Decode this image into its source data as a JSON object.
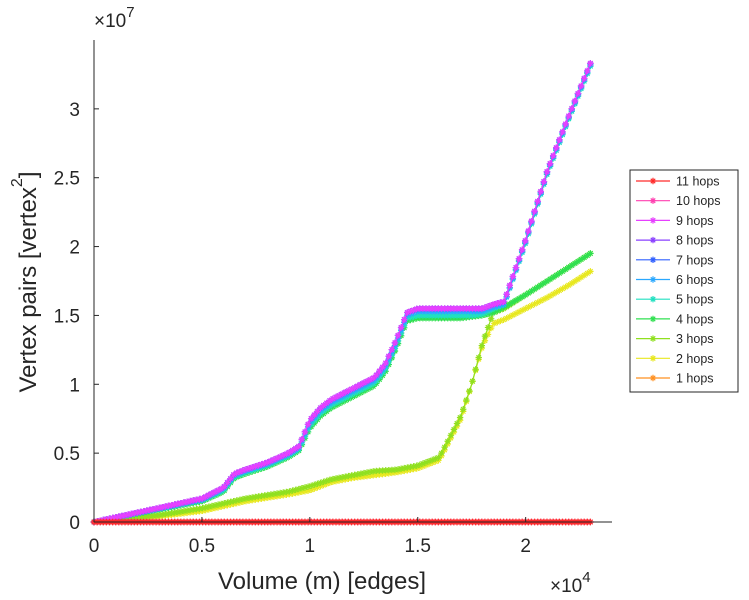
{
  "chart_data": {
    "type": "line",
    "title": "",
    "xlabel": "Volume (m) [edges]",
    "ylabel": "Vertex pairs [vertex",
    "ylabel_superscript": "2",
    "ylabel_close": "]",
    "x_exponent_label": "×10",
    "x_exponent": "4",
    "y_exponent_label": "×10",
    "y_exponent": "7",
    "xlim": [
      0,
      2.4
    ],
    "ylim": [
      0,
      3.5
    ],
    "x_ticks": [
      0,
      0.5,
      1,
      1.5,
      2
    ],
    "x_tick_labels": [
      "0",
      "0.5",
      "1",
      "1.5",
      "2"
    ],
    "y_ticks": [
      0,
      0.5,
      1,
      1.5,
      2,
      2.5,
      3
    ],
    "y_tick_labels": [
      "0",
      "0.5",
      "1",
      "1.5",
      "2",
      "2.5",
      "3"
    ],
    "units_note": "x values in units of 1e4 edges, y values in units of 1e7 vertex pairs",
    "legend_position": "right",
    "series": [
      {
        "name": "11 hops",
        "color": "#ff2a2a",
        "x": [
          0,
          2.3
        ],
        "y": [
          0,
          0
        ]
      },
      {
        "name": "10 hops",
        "color": "#ff40b0",
        "x": [
          0,
          2.3
        ],
        "y": [
          0,
          0
        ]
      },
      {
        "name": "9 hops",
        "color": "#e640ff",
        "x": [
          0,
          0.5,
          0.6,
          0.65,
          0.7,
          0.8,
          0.9,
          0.95,
          1.0,
          1.05,
          1.1,
          1.2,
          1.3,
          1.35,
          1.4,
          1.45,
          1.5,
          1.6,
          1.7,
          1.75,
          1.8,
          1.85,
          1.9,
          2.0,
          2.1,
          2.2,
          2.3
        ],
        "y": [
          0,
          0.17,
          0.25,
          0.35,
          0.38,
          0.43,
          0.5,
          0.55,
          0.74,
          0.83,
          0.89,
          0.97,
          1.05,
          1.15,
          1.32,
          1.52,
          1.55,
          1.55,
          1.55,
          1.55,
          1.55,
          1.58,
          1.6,
          2.05,
          2.55,
          2.95,
          3.33
        ]
      },
      {
        "name": "8 hops",
        "color": "#8a40ff",
        "x": [
          0,
          0.5,
          0.6,
          0.65,
          0.7,
          0.8,
          0.9,
          0.95,
          1.0,
          1.05,
          1.1,
          1.2,
          1.3,
          1.35,
          1.4,
          1.45,
          1.5,
          1.6,
          1.7,
          1.75,
          1.8,
          1.85,
          1.9,
          2.0,
          2.1,
          2.2,
          2.3
        ],
        "y": [
          0,
          0.17,
          0.25,
          0.35,
          0.38,
          0.43,
          0.5,
          0.55,
          0.74,
          0.83,
          0.89,
          0.97,
          1.05,
          1.15,
          1.32,
          1.52,
          1.55,
          1.55,
          1.55,
          1.55,
          1.55,
          1.58,
          1.6,
          2.05,
          2.55,
          2.95,
          3.33
        ]
      },
      {
        "name": "7 hops",
        "color": "#3060ff",
        "x": [
          0,
          0.5,
          0.6,
          0.65,
          0.7,
          0.8,
          0.9,
          0.95,
          1.0,
          1.05,
          1.1,
          1.2,
          1.3,
          1.35,
          1.4,
          1.45,
          1.5,
          1.6,
          1.7,
          1.75,
          1.8,
          1.85,
          1.9,
          2.0,
          2.1,
          2.2,
          2.3
        ],
        "y": [
          0,
          0.17,
          0.25,
          0.35,
          0.38,
          0.43,
          0.5,
          0.55,
          0.74,
          0.83,
          0.89,
          0.97,
          1.05,
          1.15,
          1.32,
          1.52,
          1.55,
          1.55,
          1.55,
          1.55,
          1.55,
          1.58,
          1.6,
          2.05,
          2.55,
          2.95,
          3.33
        ]
      },
      {
        "name": "6 hops",
        "color": "#2aa8ff",
        "x": [
          0,
          0.5,
          0.6,
          0.65,
          0.7,
          0.8,
          0.9,
          0.95,
          1.0,
          1.05,
          1.1,
          1.2,
          1.3,
          1.35,
          1.4,
          1.45,
          1.5,
          1.6,
          1.7,
          1.75,
          1.8,
          1.85,
          1.9,
          2.0,
          2.1,
          2.2,
          2.3
        ],
        "y": [
          0,
          0.16,
          0.24,
          0.34,
          0.37,
          0.42,
          0.49,
          0.54,
          0.72,
          0.81,
          0.87,
          0.95,
          1.03,
          1.13,
          1.3,
          1.5,
          1.53,
          1.53,
          1.53,
          1.53,
          1.53,
          1.56,
          1.58,
          2.04,
          2.54,
          2.94,
          3.32
        ]
      },
      {
        "name": "5 hops",
        "color": "#20e0c0",
        "x": [
          0,
          0.5,
          0.6,
          0.65,
          0.7,
          0.8,
          0.9,
          0.95,
          1.0,
          1.05,
          1.1,
          1.2,
          1.3,
          1.35,
          1.4,
          1.45,
          1.5,
          1.6,
          1.7,
          1.75,
          1.8,
          1.85,
          1.9,
          2.0,
          2.1,
          2.2,
          2.3
        ],
        "y": [
          0,
          0.16,
          0.23,
          0.33,
          0.36,
          0.41,
          0.48,
          0.53,
          0.7,
          0.79,
          0.85,
          0.93,
          1.01,
          1.11,
          1.28,
          1.48,
          1.5,
          1.5,
          1.5,
          1.5,
          1.51,
          1.55,
          1.58,
          2.03,
          2.53,
          2.93,
          3.31
        ]
      },
      {
        "name": "4 hops",
        "color": "#30e050",
        "x": [
          0,
          0.5,
          0.6,
          0.65,
          0.7,
          0.8,
          0.9,
          0.95,
          1.0,
          1.05,
          1.1,
          1.2,
          1.3,
          1.35,
          1.4,
          1.45,
          1.5,
          1.6,
          1.7,
          1.75,
          1.8,
          1.85,
          1.9,
          2.0,
          2.1,
          2.2,
          2.3
        ],
        "y": [
          0,
          0.15,
          0.22,
          0.32,
          0.35,
          0.4,
          0.47,
          0.52,
          0.68,
          0.77,
          0.83,
          0.91,
          0.99,
          1.09,
          1.26,
          1.46,
          1.48,
          1.48,
          1.48,
          1.49,
          1.5,
          1.52,
          1.56,
          1.65,
          1.75,
          1.85,
          1.95
        ]
      },
      {
        "name": "3 hops",
        "color": "#90e020",
        "x": [
          0,
          0.3,
          0.5,
          0.7,
          0.9,
          1.0,
          1.1,
          1.2,
          1.3,
          1.4,
          1.5,
          1.6,
          1.65,
          1.7,
          1.75,
          1.8,
          1.85,
          1.9,
          2.0,
          2.1,
          2.2,
          2.3
        ],
        "y": [
          0,
          0.05,
          0.1,
          0.17,
          0.22,
          0.26,
          0.31,
          0.34,
          0.37,
          0.38,
          0.41,
          0.47,
          0.62,
          0.77,
          1.0,
          1.3,
          1.52,
          1.55,
          1.65,
          1.75,
          1.85,
          1.95
        ]
      },
      {
        "name": "2 hops",
        "color": "#e8e820",
        "x": [
          0,
          0.3,
          0.5,
          0.7,
          0.9,
          1.0,
          1.1,
          1.2,
          1.3,
          1.4,
          1.5,
          1.6,
          1.65,
          1.7,
          1.75,
          1.8,
          1.85,
          1.9,
          2.0,
          2.1,
          2.2,
          2.3
        ],
        "y": [
          0,
          0.04,
          0.08,
          0.15,
          0.2,
          0.23,
          0.29,
          0.32,
          0.34,
          0.36,
          0.39,
          0.45,
          0.6,
          0.75,
          1.0,
          1.28,
          1.44,
          1.47,
          1.55,
          1.63,
          1.72,
          1.82
        ]
      },
      {
        "name": "1 hops",
        "color": "#ff9020",
        "x": [
          0,
          2.3
        ],
        "y": [
          0,
          0
        ]
      }
    ]
  }
}
